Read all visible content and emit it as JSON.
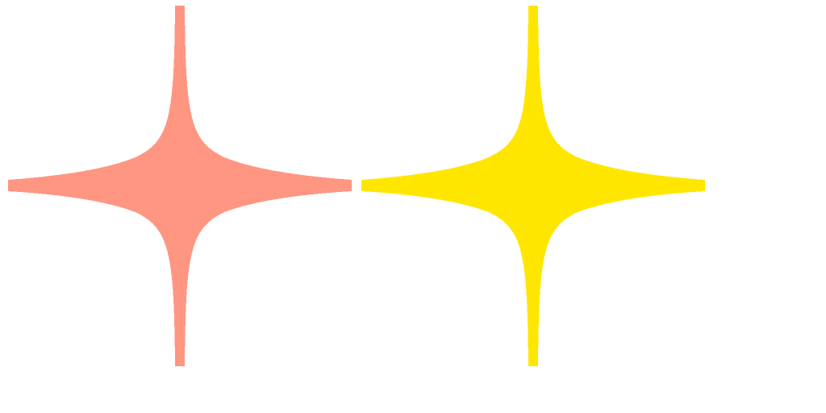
{
  "canvas": {
    "background": "#ffffff"
  },
  "sparkles": [
    {
      "name": "salmon-sparkle-icon",
      "color": "#ff9682"
    },
    {
      "name": "yellow-sparkle-icon",
      "color": "#ffe600"
    }
  ]
}
